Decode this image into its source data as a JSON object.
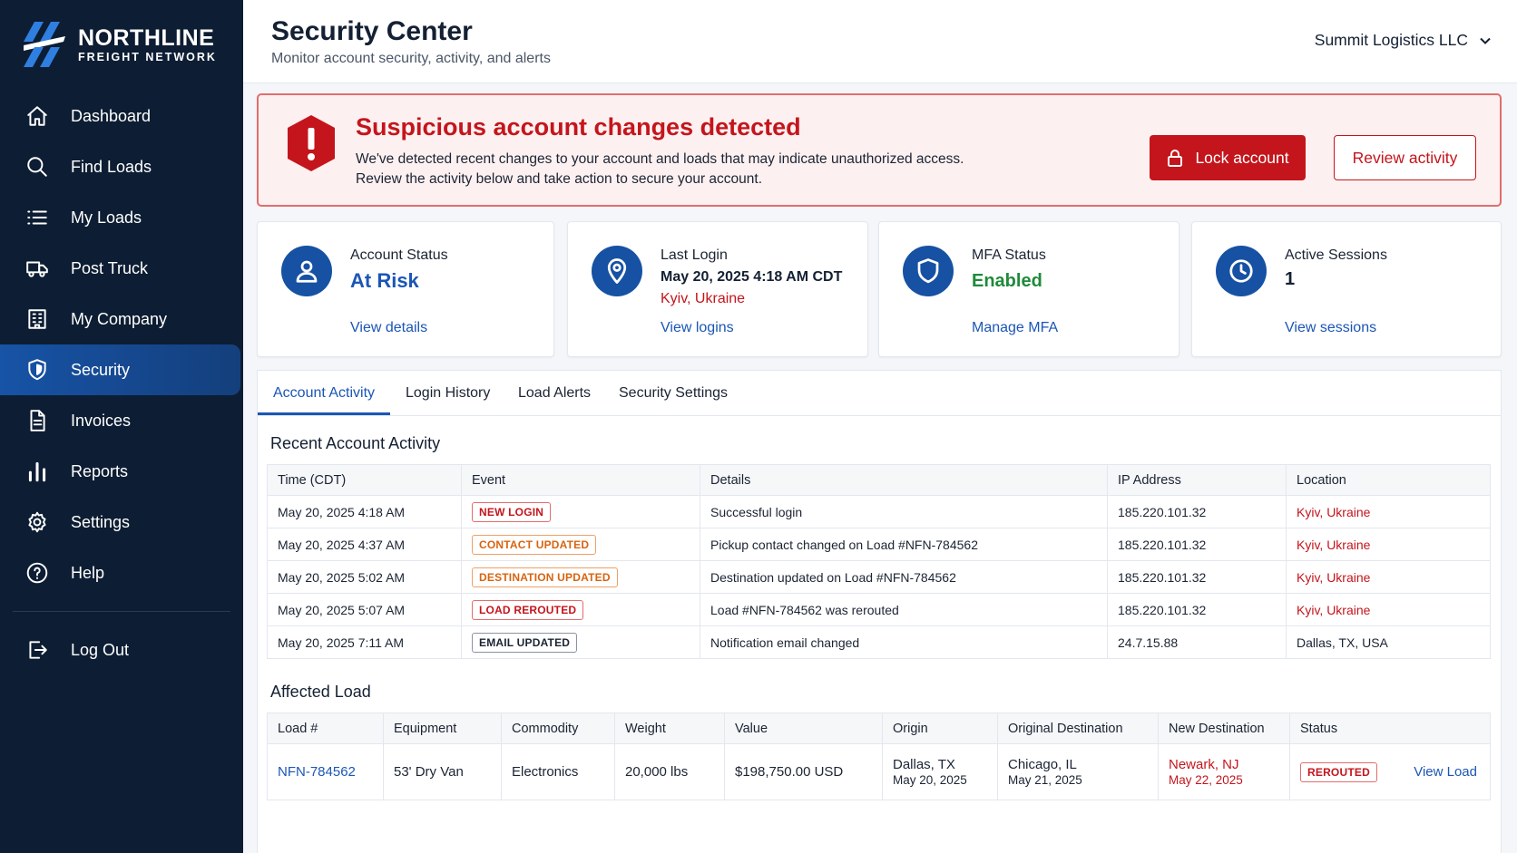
{
  "brand": {
    "name": "NORTHLINE",
    "tagline": "FREIGHT NETWORK"
  },
  "nav": [
    {
      "label": "Dashboard",
      "icon": "home-icon"
    },
    {
      "label": "Find Loads",
      "icon": "search-icon"
    },
    {
      "label": "My Loads",
      "icon": "list-icon"
    },
    {
      "label": "Post Truck",
      "icon": "truck-icon"
    },
    {
      "label": "My Company",
      "icon": "building-icon"
    },
    {
      "label": "Security",
      "icon": "shield-icon",
      "active": true
    },
    {
      "label": "Invoices",
      "icon": "document-icon"
    },
    {
      "label": "Reports",
      "icon": "bar-chart-icon"
    },
    {
      "label": "Settings",
      "icon": "gear-icon"
    },
    {
      "label": "Help",
      "icon": "help-icon"
    }
  ],
  "logout": {
    "label": "Log Out",
    "icon": "logout-icon"
  },
  "header": {
    "title": "Security Center",
    "subtitle": "Monitor account security, activity, and alerts",
    "org": "Summit Logistics LLC"
  },
  "alert": {
    "title": "Suspicious account changes detected",
    "line1": "We've detected recent changes to your account and loads that may indicate unauthorized access.",
    "line2": "Review the activity below and take action to secure your account.",
    "lock_label": "Lock account",
    "review_label": "Review activity"
  },
  "cards": {
    "status": {
      "label": "Account Status",
      "value": "At Risk",
      "link": "View details"
    },
    "login": {
      "label": "Last Login",
      "value": "May 20, 2025 4:18 AM CDT",
      "location": "Kyiv, Ukraine",
      "link": "View logins"
    },
    "mfa": {
      "label": "MFA Status",
      "value": "Enabled",
      "link": "Manage MFA"
    },
    "sessions": {
      "label": "Active Sessions",
      "value": "1",
      "link": "View sessions"
    }
  },
  "tabs": [
    "Account Activity",
    "Login History",
    "Load Alerts",
    "Security Settings"
  ],
  "activity": {
    "title": "Recent Account Activity",
    "columns": [
      "Time (CDT)",
      "Event",
      "Details",
      "IP Address",
      "Location"
    ],
    "rows": [
      {
        "time": "May 20, 2025 4:18 AM",
        "event": "NEW LOGIN",
        "tone": "red",
        "details": "Successful login",
        "ip": "185.220.101.32",
        "location": "Kyiv, Ukraine",
        "loc_alert": true
      },
      {
        "time": "May 20, 2025 4:37 AM",
        "event": "CONTACT UPDATED",
        "tone": "orange",
        "details": "Pickup contact changed on Load #NFN-784562",
        "ip": "185.220.101.32",
        "location": "Kyiv, Ukraine",
        "loc_alert": true
      },
      {
        "time": "May 20, 2025 5:02 AM",
        "event": "DESTINATION UPDATED",
        "tone": "orange",
        "details": "Destination updated on Load #NFN-784562",
        "ip": "185.220.101.32",
        "location": "Kyiv, Ukraine",
        "loc_alert": true
      },
      {
        "time": "May 20, 2025 5:07 AM",
        "event": "LOAD REROUTED",
        "tone": "red",
        "details": "Load #NFN-784562 was rerouted",
        "ip": "185.220.101.32",
        "location": "Kyiv, Ukraine",
        "loc_alert": true
      },
      {
        "time": "May 20, 2025 7:11 AM",
        "event": "EMAIL UPDATED",
        "tone": "gray",
        "details": "Notification email changed",
        "ip": "24.7.15.88",
        "location": "Dallas, TX, USA",
        "loc_alert": false
      }
    ]
  },
  "affected": {
    "title": "Affected Load",
    "columns": [
      "Load #",
      "Equipment",
      "Commodity",
      "Weight",
      "Value",
      "Origin",
      "Original Destination",
      "New Destination",
      "Status"
    ],
    "row": {
      "load": "NFN-784562",
      "equipment": "53' Dry Van",
      "commodity": "Electronics",
      "weight": "20,000 lbs",
      "value": "$198,750.00 USD",
      "origin_city": "Dallas, TX",
      "origin_date": "May 20, 2025",
      "orig_dest_city": "Chicago, IL",
      "orig_dest_date": "May 21, 2025",
      "new_dest_city": "Newark, NJ",
      "new_dest_date": "May 22, 2025",
      "status": "REROUTED",
      "action": "View Load"
    }
  },
  "colors": {
    "sidebar": "#0d1d33",
    "accent": "#1b56b5",
    "danger": "#c4151c",
    "warning": "#d9630f",
    "success": "#1f8a3a"
  }
}
